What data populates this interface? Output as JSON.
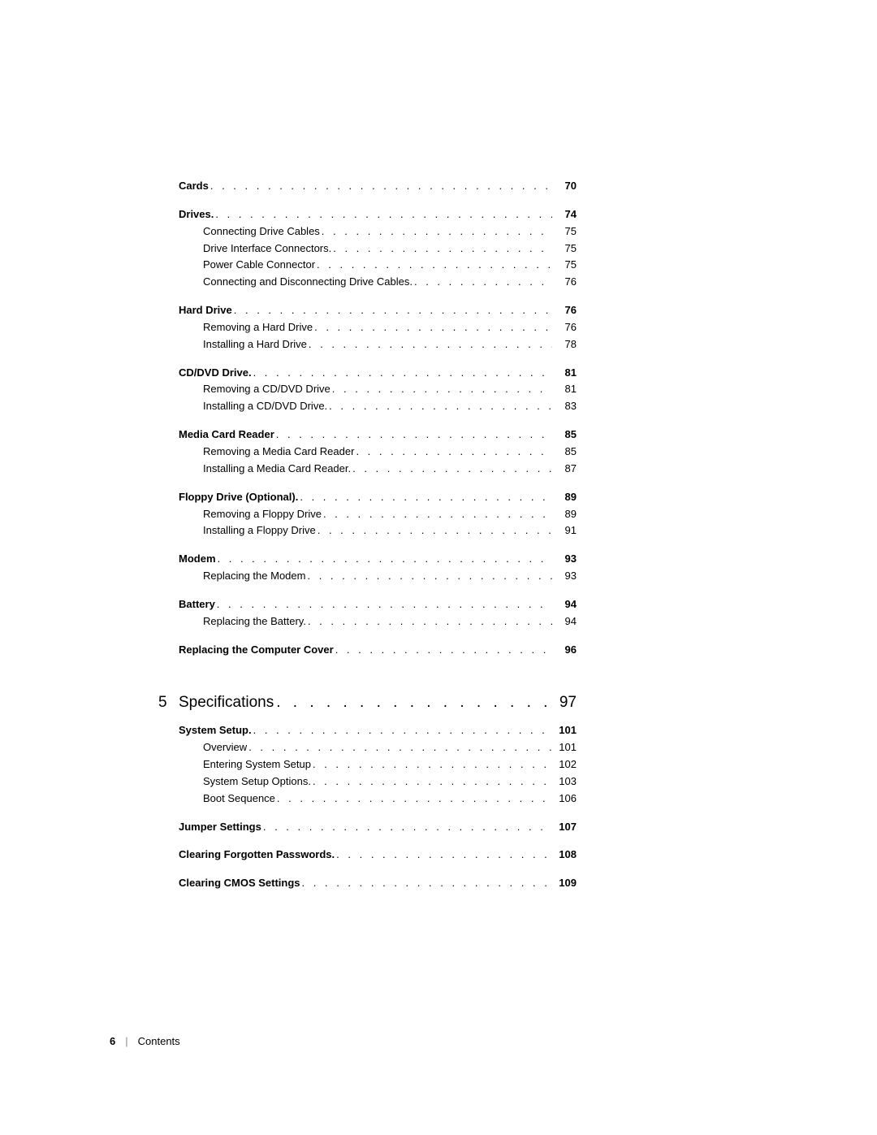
{
  "dots_segment": ".  .  .  .  .  .  .  .  .  .  .  .  .  .  .  .  .  .  .  .  .  .  .  .  .  .  .  .  .  .  .  .  .  .  .  .  .  .  .  .  .  .  .  .  .  .  .  .  .  .  .  .  .  .  .  .  .  .  .  .  .",
  "chapter_dots": ". . . . . . . . . . . . . . . . . . . . . . . . . . . . . . . . . . . . . . . . . . . . .",
  "sections": [
    {
      "type": "entry",
      "label": "Cards",
      "page": "70",
      "bold": true,
      "indent": 0
    },
    {
      "type": "gap"
    },
    {
      "type": "entry",
      "label": "Drives",
      "page": "74",
      "bold": true,
      "indent": 0,
      "trail_period": true
    },
    {
      "type": "entry",
      "label": "Connecting Drive Cables",
      "page": "75",
      "bold": false,
      "indent": 1
    },
    {
      "type": "entry",
      "label": "Drive Interface Connectors",
      "page": "75",
      "bold": false,
      "indent": 1,
      "trail_period": true
    },
    {
      "type": "entry",
      "label": "Power Cable Connector",
      "page": "75",
      "bold": false,
      "indent": 1
    },
    {
      "type": "entry",
      "label": "Connecting and Disconnecting Drive Cables",
      "page": "76",
      "bold": false,
      "indent": 1,
      "trail_period": true
    },
    {
      "type": "gap"
    },
    {
      "type": "entry",
      "label": "Hard Drive",
      "page": "76",
      "bold": true,
      "indent": 0
    },
    {
      "type": "entry",
      "label": "Removing a Hard Drive",
      "page": "76",
      "bold": false,
      "indent": 1
    },
    {
      "type": "entry",
      "label": "Installing a Hard Drive",
      "page": "78",
      "bold": false,
      "indent": 1
    },
    {
      "type": "gap"
    },
    {
      "type": "entry",
      "label": "CD/DVD Drive",
      "page": "81",
      "bold": true,
      "indent": 0,
      "trail_period": true
    },
    {
      "type": "entry",
      "label": "Removing a CD/DVD Drive",
      "page": "81",
      "bold": false,
      "indent": 1
    },
    {
      "type": "entry",
      "label": "Installing a CD/DVD Drive",
      "page": "83",
      "bold": false,
      "indent": 1,
      "trail_period": true
    },
    {
      "type": "gap"
    },
    {
      "type": "entry",
      "label": "Media Card Reader",
      "page": "85",
      "bold": true,
      "indent": 0
    },
    {
      "type": "entry",
      "label": "Removing a Media Card Reader",
      "page": "85",
      "bold": false,
      "indent": 1
    },
    {
      "type": "entry",
      "label": "Installing a Media Card Reader",
      "page": "87",
      "bold": false,
      "indent": 1,
      "trail_period": true
    },
    {
      "type": "gap"
    },
    {
      "type": "entry",
      "label": "Floppy Drive (Optional)",
      "page": "89",
      "bold": true,
      "indent": 0,
      "trail_period": true
    },
    {
      "type": "entry",
      "label": "Removing a Floppy Drive",
      "page": "89",
      "bold": false,
      "indent": 1
    },
    {
      "type": "entry",
      "label": "Installing a Floppy Drive",
      "page": "91",
      "bold": false,
      "indent": 1
    },
    {
      "type": "gap"
    },
    {
      "type": "entry",
      "label": "Modem",
      "page": "93",
      "bold": true,
      "indent": 0
    },
    {
      "type": "entry",
      "label": "Replacing the Modem",
      "page": "93",
      "bold": false,
      "indent": 1
    },
    {
      "type": "gap"
    },
    {
      "type": "entry",
      "label": "Battery",
      "page": "94",
      "bold": true,
      "indent": 0
    },
    {
      "type": "entry",
      "label": "Replacing the Battery",
      "page": "94",
      "bold": false,
      "indent": 1,
      "trail_period": true
    },
    {
      "type": "gap"
    },
    {
      "type": "entry",
      "label": "Replacing the Computer Cover",
      "page": "96",
      "bold": true,
      "indent": 0
    }
  ],
  "chapter": {
    "num": "5",
    "title": "Specifications",
    "page": "97"
  },
  "post_chapter": [
    {
      "type": "entry",
      "label": "System Setup",
      "page": "101",
      "bold": true,
      "indent": 0,
      "trail_period": true
    },
    {
      "type": "entry",
      "label": "Overview",
      "page": "101",
      "bold": false,
      "indent": 1
    },
    {
      "type": "entry",
      "label": "Entering System Setup",
      "page": "102",
      "bold": false,
      "indent": 1
    },
    {
      "type": "entry",
      "label": "System Setup Options",
      "page": "103",
      "bold": false,
      "indent": 1,
      "trail_period": true
    },
    {
      "type": "entry",
      "label": "Boot Sequence",
      "page": "106",
      "bold": false,
      "indent": 1
    },
    {
      "type": "gap"
    },
    {
      "type": "entry",
      "label": "Jumper Settings",
      "page": "107",
      "bold": true,
      "indent": 0
    },
    {
      "type": "gap"
    },
    {
      "type": "entry",
      "label": "Clearing Forgotten Passwords",
      "page": "108",
      "bold": true,
      "indent": 0,
      "trail_period": true
    },
    {
      "type": "gap"
    },
    {
      "type": "entry",
      "label": "Clearing CMOS Settings",
      "page": "109",
      "bold": true,
      "indent": 0
    }
  ],
  "footer": {
    "page_num": "6",
    "divider": "|",
    "label": "Contents"
  }
}
